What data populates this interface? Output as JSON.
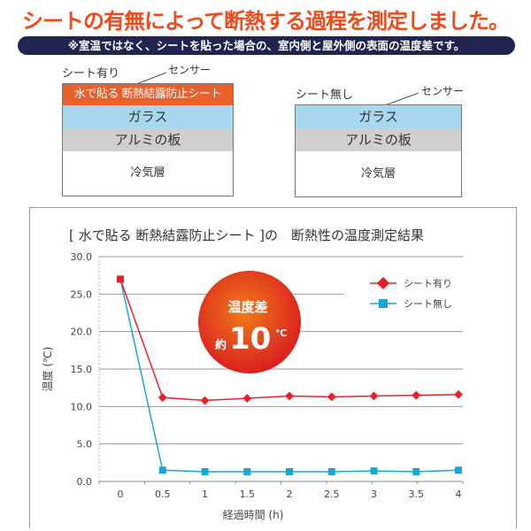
{
  "headline": "シートの有無によって断熱する過程を測定しました。",
  "note": "※室温ではなく、シートを貼った場合の、室内側と屋外側の表面の温度差です。",
  "diagram_with": {
    "label": "シート有り",
    "sensor": "センサー",
    "layers": [
      "水で貼る 断熱結露防止シート",
      "ガラス",
      "アルミの板",
      "冷気層"
    ]
  },
  "diagram_without": {
    "label": "シート無し",
    "sensor": "センサー",
    "layers": [
      "ガラス",
      "アルミの板",
      "冷気層"
    ]
  },
  "badge": {
    "line1": "温度差",
    "prefix": "約",
    "value": "10",
    "unit": "℃"
  },
  "colors": {
    "accent": "#f04a1a",
    "with": "#e8202a",
    "without": "#1aa6d2"
  },
  "chart_data": {
    "type": "line",
    "title": "[ 水で貼る 断熱結露防止シート ]の　断熱性の温度測定結果",
    "xlabel": "経過時間 (h)",
    "ylabel": "温度 (℃)",
    "x": [
      0,
      0.5,
      1,
      1.5,
      2,
      2.5,
      3,
      3.5,
      4
    ],
    "x_tick_labels": [
      "0",
      "0.5",
      "1",
      "1.5",
      "2",
      "2.5",
      "3",
      "3.5",
      "4"
    ],
    "y_tick_labels": [
      "0.0",
      "5.0",
      "10.0",
      "15.0",
      "20.0",
      "25.0",
      "30.0"
    ],
    "ylim": [
      0,
      30
    ],
    "grid": true,
    "legend_position": "top-right",
    "series": [
      {
        "name": "シート有り",
        "marker": "diamond",
        "values": [
          27.0,
          11.2,
          10.8,
          11.1,
          11.4,
          11.3,
          11.4,
          11.5,
          11.6
        ]
      },
      {
        "name": "シート無し",
        "marker": "square",
        "values": [
          27.0,
          1.5,
          1.3,
          1.3,
          1.3,
          1.3,
          1.4,
          1.3,
          1.5
        ]
      }
    ]
  }
}
